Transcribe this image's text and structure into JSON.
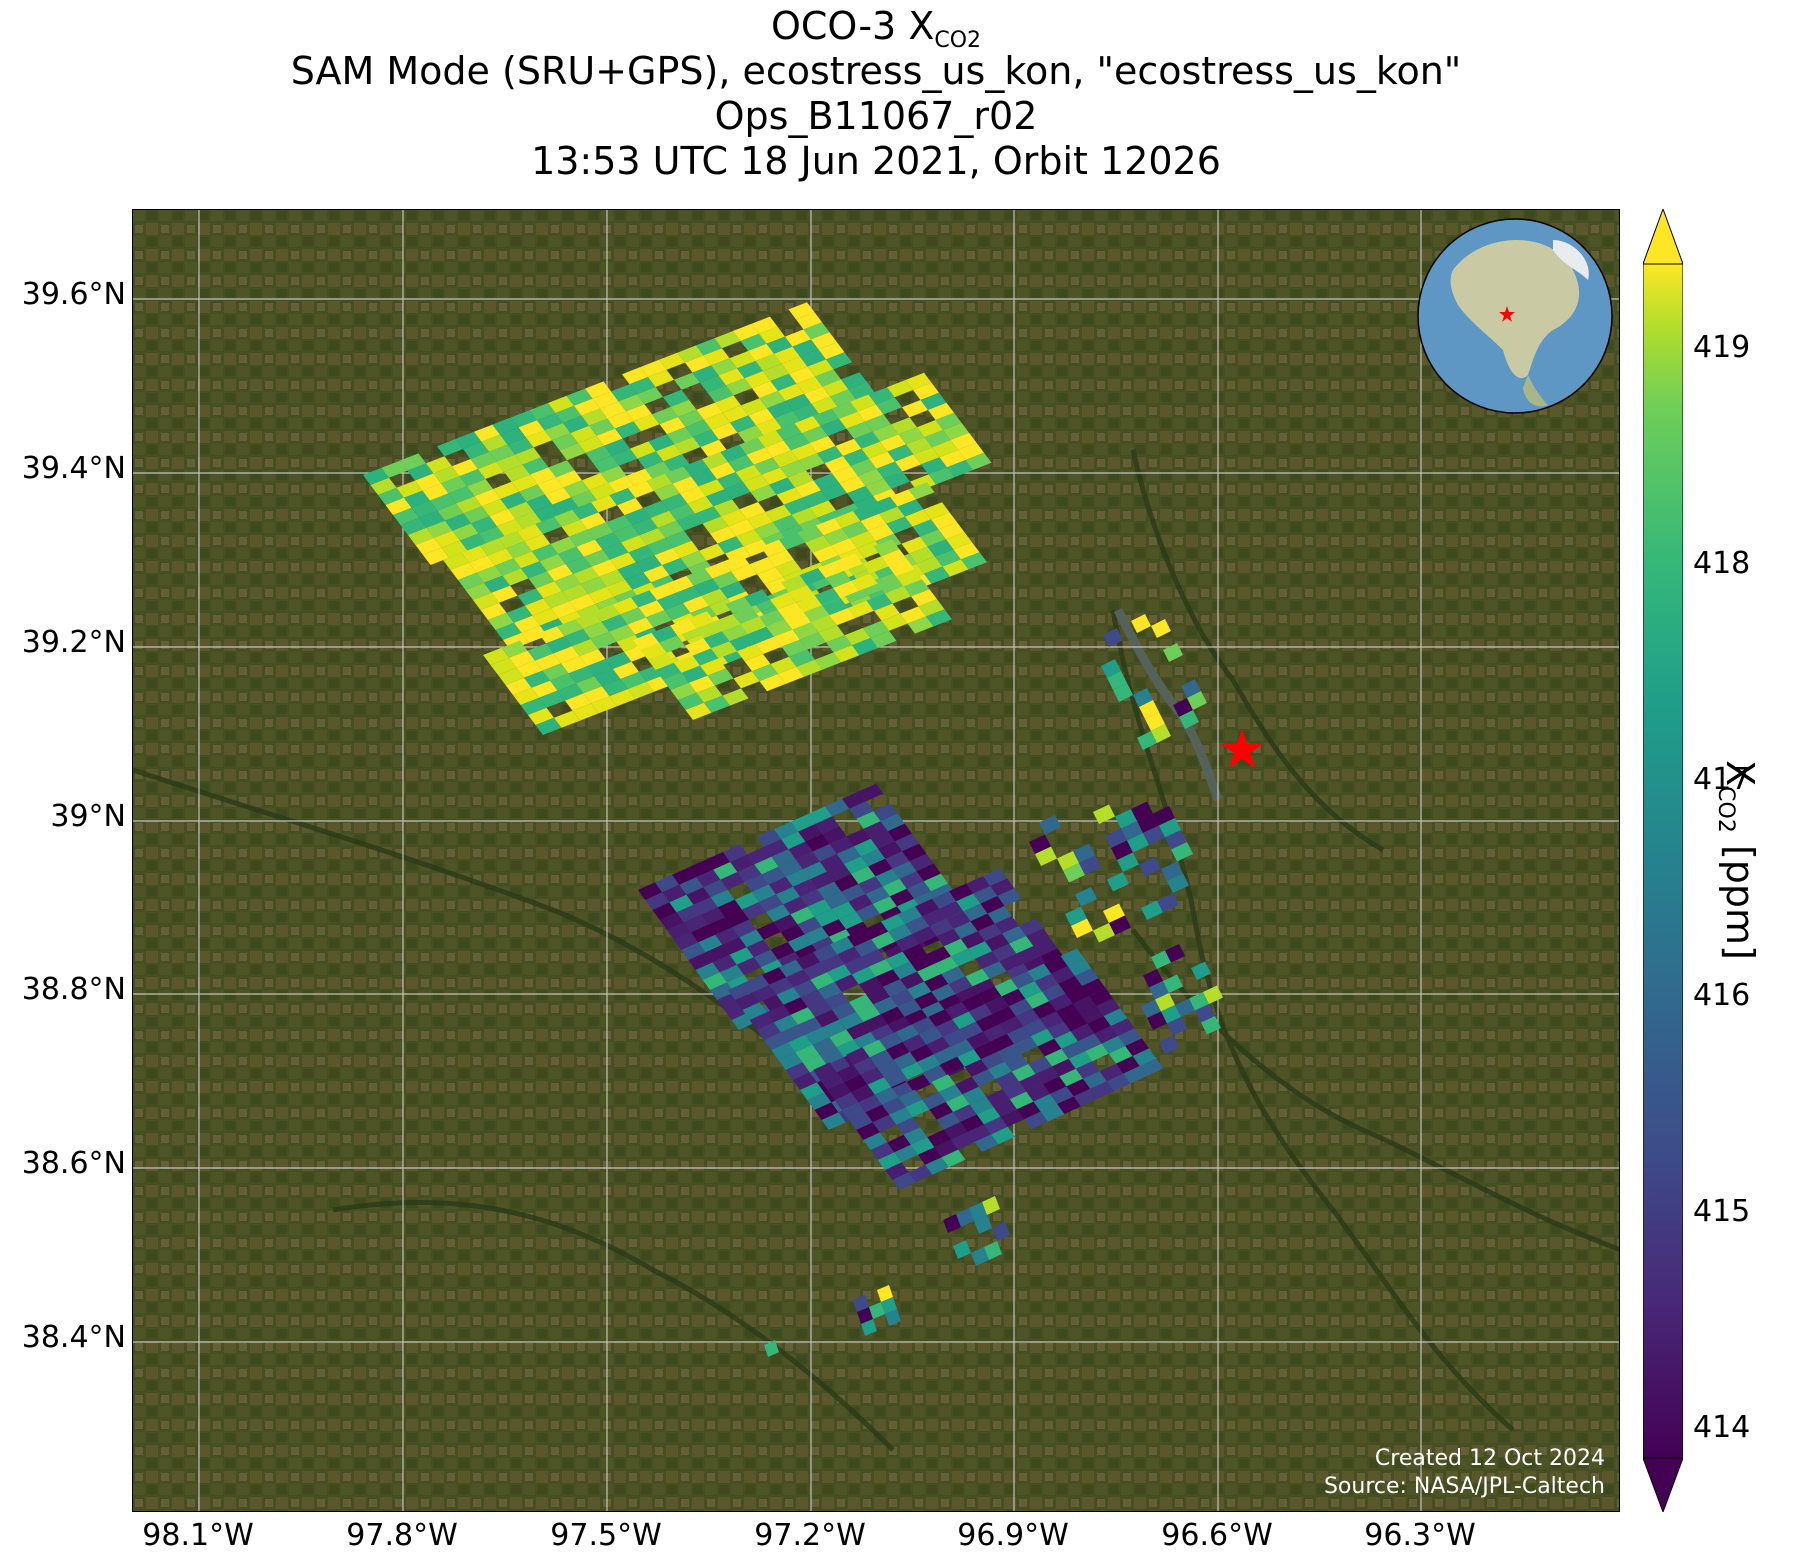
{
  "title": {
    "line1_prefix": "OCO-3 X",
    "line1_sub": "CO2",
    "line2": "SAM Mode (SRU+GPS), ecostress_us_kon, \"ecostress_us_kon\"",
    "line3": "Ops_B11067_r02",
    "line4": "13:53 UTC 18 Jun 2021, Orbit 12026"
  },
  "map": {
    "lat_ticks": [
      "39.6°N",
      "39.4°N",
      "39.2°N",
      "39°N",
      "38.8°N",
      "38.6°N",
      "38.4°N"
    ],
    "lon_ticks": [
      "98.1°W",
      "97.8°W",
      "97.5°W",
      "97.2°W",
      "96.9°W",
      "96.6°W",
      "96.3°W"
    ],
    "target_marker": "red-star",
    "inset": "orthographic-globe-north-america",
    "basemap": "satellite-imagery"
  },
  "credits": {
    "created": "Created 12 Oct 2024",
    "source": "Source: NASA/JPL-Caltech"
  },
  "colorbar": {
    "colormap": "viridis",
    "ticks": [
      "414",
      "415",
      "416",
      "417",
      "418",
      "419"
    ],
    "label_prefix": "X",
    "label_sub": "CO2",
    "label_suffix": " [ppm]",
    "extend": "both"
  }
}
